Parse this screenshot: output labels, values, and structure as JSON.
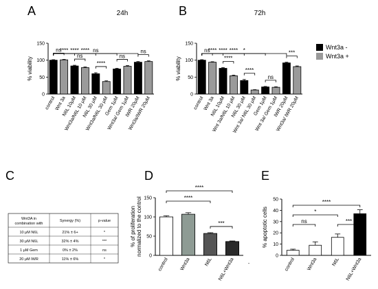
{
  "panels": {
    "A": {
      "letter": "A",
      "chart_data": {
        "type": "bar",
        "title": "24h",
        "ylabel": "% viability",
        "ylim": [
          0,
          150
        ],
        "yticks": [
          "0",
          "50",
          "100",
          "150"
        ],
        "grid": false,
        "bars": [
          {
            "label": "control",
            "value": 100,
            "err": 1.5,
            "color": "#000000"
          },
          {
            "label": "Wnt 3a",
            "value": 101,
            "err": 1.5,
            "color": "#9a9a9a"
          },
          {
            "label": "N6L 10μM",
            "value": 83,
            "err": 2,
            "color": "#000000"
          },
          {
            "label": "Wnt3a/N6L 10 μM",
            "value": 78,
            "err": 2,
            "color": "#9a9a9a"
          },
          {
            "label": "N6L 30 μM",
            "value": 60,
            "err": 3,
            "color": "#000000"
          },
          {
            "label": "Wnt3a/N6L 30 μM",
            "value": 37,
            "err": 2,
            "color": "#9a9a9a"
          },
          {
            "label": "Gem 1μM",
            "value": 74,
            "err": 2,
            "color": "#000000"
          },
          {
            "label": "Wnt3a/ Gem 1μM",
            "value": 82,
            "err": 2,
            "color": "#9a9a9a"
          },
          {
            "label": "IWR 20μM",
            "value": 94,
            "err": 2,
            "color": "#000000"
          },
          {
            "label": "Wnt3a/IWR 20μM",
            "value": 96,
            "err": 2,
            "color": "#9a9a9a"
          }
        ],
        "brackets": [
          {
            "from": 0,
            "to": 8,
            "text": "ns",
            "level": 4
          },
          {
            "from": 0,
            "to": 6,
            "text": "****",
            "level": 3
          },
          {
            "from": 0,
            "to": 4,
            "text": "****",
            "level": 2
          },
          {
            "from": 0,
            "to": 2,
            "text": "****",
            "level": 1
          },
          {
            "from": 0,
            "to": 1,
            "text": "ns",
            "level": 0
          },
          {
            "from": 2,
            "to": 3,
            "text": "ns",
            "level": 0
          },
          {
            "from": 4,
            "to": 5,
            "text": "****",
            "level": 0
          },
          {
            "from": 6,
            "to": 7,
            "text": "ns",
            "level": 0
          },
          {
            "from": 8,
            "to": 9,
            "text": "ns",
            "level": 0
          }
        ]
      }
    },
    "B": {
      "letter": "B",
      "chart_data": {
        "type": "bar",
        "title": "72h",
        "ylabel": "% viability",
        "ylim": [
          0,
          150
        ],
        "yticks": [
          "0",
          "50",
          "100",
          "150"
        ],
        "grid": false,
        "legend": [
          {
            "label": "Wnt3a -",
            "color": "#000000"
          },
          {
            "label": "Wnt3a +",
            "color": "#9a9a9a"
          }
        ],
        "legend_position": "right",
        "bars": [
          {
            "label": "control",
            "value": 100,
            "err": 1.5,
            "color": "#000000"
          },
          {
            "label": "Wnt 3a",
            "value": 94,
            "err": 1.5,
            "color": "#9a9a9a"
          },
          {
            "label": "N6L 10μM",
            "value": 76,
            "err": 2,
            "color": "#000000"
          },
          {
            "label": "Wnt 3a/N6L 10 μM",
            "value": 54,
            "err": 2,
            "color": "#9a9a9a"
          },
          {
            "label": "N6L 30 μM",
            "value": 40,
            "err": 3,
            "color": "#000000"
          },
          {
            "label": "Wnt 3a/ N6L 30 μM",
            "value": 12,
            "err": 1,
            "color": "#9a9a9a"
          },
          {
            "label": "Gem 1μM",
            "value": 21,
            "err": 1.5,
            "color": "#000000"
          },
          {
            "label": "Wnt 3a/ Gem 1μM",
            "value": 20,
            "err": 1.5,
            "color": "#9a9a9a"
          },
          {
            "label": "IWR 20μM",
            "value": 92,
            "err": 2,
            "color": "#000000"
          },
          {
            "label": "Wnt3a/ IWR 20μM",
            "value": 81,
            "err": 2,
            "color": "#9a9a9a"
          }
        ],
        "brackets": [
          {
            "from": 0,
            "to": 8,
            "text": "*",
            "level": 4
          },
          {
            "from": 0,
            "to": 6,
            "text": "****",
            "level": 3
          },
          {
            "from": 0,
            "to": 4,
            "text": "****",
            "level": 2
          },
          {
            "from": 0,
            "to": 2,
            "text": "****",
            "level": 1
          },
          {
            "from": 0,
            "to": 1,
            "text": "ns",
            "level": 0
          },
          {
            "from": 2,
            "to": 3,
            "text": "****",
            "level": 0
          },
          {
            "from": 4,
            "to": 5,
            "text": "****",
            "level": 0
          },
          {
            "from": 6,
            "to": 7,
            "text": "ns",
            "level": 0
          },
          {
            "from": 8,
            "to": 9,
            "text": "***",
            "level": 0
          }
        ]
      }
    },
    "C": {
      "letter": "C",
      "chart_data": {
        "type": "table",
        "headers": [
          "Wnt3A in combination with",
          "Synergy (%)",
          "p-value"
        ],
        "rows": [
          [
            "10 μM N6L",
            "21% ± 6+",
            "*"
          ],
          [
            "30 μM N6L",
            "32% ± 4%",
            "***"
          ],
          [
            "1 μM Gem",
            "0% ± 2%",
            "ns"
          ],
          [
            "20 μM IWR",
            "11% ± 6%",
            "*"
          ]
        ]
      }
    },
    "D": {
      "letter": "D",
      "chart_data": {
        "type": "bar",
        "ylabel": "% of proliferation normalized to the control",
        "ylabel_lines": [
          "% of proliferation",
          "normalized to the control"
        ],
        "ylim": [
          0,
          150
        ],
        "yticks": [
          "0",
          "50",
          "100",
          "150"
        ],
        "grid": false,
        "bars": [
          {
            "label": "control",
            "value": 100,
            "err": 3,
            "color": "#ffffff"
          },
          {
            "label": "Wnt3a",
            "value": 107,
            "err": 4,
            "color": "#8e9b94"
          },
          {
            "label": "N6L",
            "value": 57,
            "err": 2,
            "color": "#555555"
          },
          {
            "label": "N6L+Wnt3a",
            "value": 36,
            "err": 1.5,
            "color": "#2a2a2a"
          }
        ],
        "extra_ticks": [
          {
            "after": 3,
            "text": "-"
          }
        ],
        "brackets": [
          {
            "from": 0,
            "to": 3,
            "text": "****",
            "level": 2
          },
          {
            "from": 0,
            "to": 2,
            "text": "****",
            "level": 1
          },
          {
            "from": 2,
            "to": 3,
            "text": "***",
            "level": 0
          }
        ]
      }
    },
    "E": {
      "letter": "E",
      "chart_data": {
        "type": "bar",
        "ylabel": "% apoptotic cells",
        "ylim": [
          0,
          50
        ],
        "yticks": [
          "0",
          "10",
          "20",
          "30",
          "40",
          "50"
        ],
        "grid": false,
        "bars": [
          {
            "label": "control",
            "value": 4.5,
            "err": 1,
            "color": "#ffffff"
          },
          {
            "label": "Wnt3a",
            "value": 9,
            "err": 3,
            "color": "#ffffff"
          },
          {
            "label": "N6L",
            "value": 16,
            "err": 3,
            "color": "#ffffff"
          },
          {
            "label": "N6L+Wnt3a",
            "value": 37,
            "err": 3.5,
            "color": "#000000"
          }
        ],
        "brackets": [
          {
            "from": 0,
            "to": 3,
            "text": "****",
            "level": 3
          },
          {
            "from": 0,
            "to": 2,
            "text": "*",
            "level": 2
          },
          {
            "from": 0,
            "to": 1,
            "text": "ns",
            "level": 1
          },
          {
            "from": 2,
            "to": 3,
            "text": "***",
            "level": 1
          }
        ]
      }
    }
  }
}
